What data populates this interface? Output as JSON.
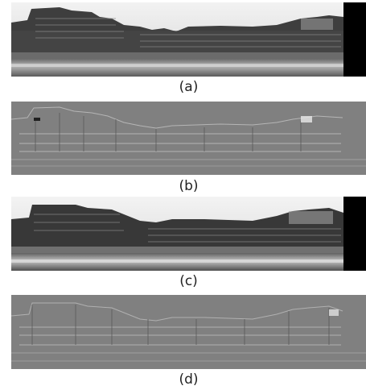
{
  "panels": [
    {
      "id": "a",
      "label": "(a)",
      "kind": "photo"
    },
    {
      "id": "b",
      "label": "(b)",
      "kind": "edge"
    },
    {
      "id": "c",
      "label": "(c)",
      "kind": "photo"
    },
    {
      "id": "d",
      "label": "(d)",
      "kind": "edge"
    }
  ],
  "colors": {
    "sky": "#d9d9d9",
    "buildings_dark": "#3a3a3a",
    "buildings_mid": "#6f6f6f",
    "water": "#8c8c8c",
    "edge_bg": "#808080",
    "black_bar": "#000000"
  }
}
